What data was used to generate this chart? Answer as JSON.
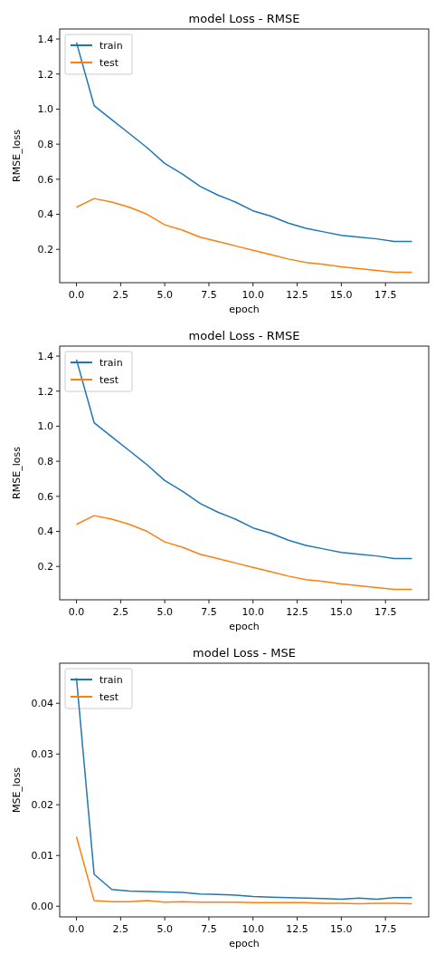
{
  "chart_data": [
    {
      "type": "line",
      "title": "model Loss - RMSE",
      "xlabel": "epoch",
      "ylabel": "RMSE_loss",
      "x": [
        0,
        1,
        2,
        3,
        4,
        5,
        6,
        7,
        8,
        9,
        10,
        11,
        12,
        13,
        14,
        15,
        16,
        17,
        18,
        19
      ],
      "xlim": [
        -0.95,
        19.95
      ],
      "xticks": [
        {
          "value": 0,
          "label": "0.0"
        },
        {
          "value": 2.5,
          "label": "2.5"
        },
        {
          "value": 5,
          "label": "5.0"
        },
        {
          "value": 7.5,
          "label": "7.5"
        },
        {
          "value": 10,
          "label": "10.0"
        },
        {
          "value": 12.5,
          "label": "12.5"
        },
        {
          "value": 15,
          "label": "15.0"
        },
        {
          "value": 17.5,
          "label": "17.5"
        }
      ],
      "ylim": [
        0.01,
        1.457
      ],
      "yticks": [
        {
          "value": 0.2,
          "label": "0.2"
        },
        {
          "value": 0.4,
          "label": "0.4"
        },
        {
          "value": 0.6,
          "label": "0.6"
        },
        {
          "value": 0.8,
          "label": "0.8"
        },
        {
          "value": 1.0,
          "label": "1.0"
        },
        {
          "value": 1.2,
          "label": "1.2"
        },
        {
          "value": 1.4,
          "label": "1.4"
        }
      ],
      "legend": "top left",
      "series": [
        {
          "name": "train",
          "color": "#1f77b4",
          "values": [
            1.38,
            1.02,
            0.94,
            0.86,
            0.78,
            0.69,
            0.63,
            0.56,
            0.51,
            0.47,
            0.42,
            0.39,
            0.35,
            0.32,
            0.3,
            0.28,
            0.27,
            0.26,
            0.245,
            0.245
          ]
        },
        {
          "name": "test",
          "color": "#ff7f0e",
          "values": [
            0.44,
            0.49,
            0.47,
            0.44,
            0.4,
            0.34,
            0.31,
            0.27,
            0.245,
            0.22,
            0.195,
            0.17,
            0.145,
            0.125,
            0.115,
            0.1,
            0.09,
            0.08,
            0.07,
            0.07
          ]
        }
      ]
    },
    {
      "type": "line",
      "title": "model Loss - RMSE",
      "xlabel": "epoch",
      "ylabel": "RMSE_loss",
      "x": [
        0,
        1,
        2,
        3,
        4,
        5,
        6,
        7,
        8,
        9,
        10,
        11,
        12,
        13,
        14,
        15,
        16,
        17,
        18,
        19
      ],
      "xlim": [
        -0.95,
        19.95
      ],
      "xticks": [
        {
          "value": 0,
          "label": "0.0"
        },
        {
          "value": 2.5,
          "label": "2.5"
        },
        {
          "value": 5,
          "label": "5.0"
        },
        {
          "value": 7.5,
          "label": "7.5"
        },
        {
          "value": 10,
          "label": "10.0"
        },
        {
          "value": 12.5,
          "label": "12.5"
        },
        {
          "value": 15,
          "label": "15.0"
        },
        {
          "value": 17.5,
          "label": "17.5"
        }
      ],
      "ylim": [
        0.01,
        1.457
      ],
      "yticks": [
        {
          "value": 0.2,
          "label": "0.2"
        },
        {
          "value": 0.4,
          "label": "0.4"
        },
        {
          "value": 0.6,
          "label": "0.6"
        },
        {
          "value": 0.8,
          "label": "0.8"
        },
        {
          "value": 1.0,
          "label": "1.0"
        },
        {
          "value": 1.2,
          "label": "1.2"
        },
        {
          "value": 1.4,
          "label": "1.4"
        }
      ],
      "legend": "top left",
      "series": [
        {
          "name": "train",
          "color": "#1f77b4",
          "values": [
            1.38,
            1.02,
            0.94,
            0.86,
            0.78,
            0.69,
            0.63,
            0.56,
            0.51,
            0.47,
            0.42,
            0.39,
            0.35,
            0.32,
            0.3,
            0.28,
            0.27,
            0.26,
            0.245,
            0.245
          ]
        },
        {
          "name": "test",
          "color": "#ff7f0e",
          "values": [
            0.44,
            0.49,
            0.47,
            0.44,
            0.4,
            0.34,
            0.31,
            0.27,
            0.245,
            0.22,
            0.195,
            0.17,
            0.145,
            0.125,
            0.115,
            0.1,
            0.09,
            0.08,
            0.07,
            0.07
          ]
        }
      ]
    },
    {
      "type": "line",
      "title": "model Loss - MSE",
      "xlabel": "epoch",
      "ylabel": "MSE_loss",
      "x": [
        0,
        1,
        2,
        3,
        4,
        5,
        6,
        7,
        8,
        9,
        10,
        11,
        12,
        13,
        14,
        15,
        16,
        17,
        18,
        19
      ],
      "xlim": [
        -0.95,
        19.95
      ],
      "xticks": [
        {
          "value": 0,
          "label": "0.0"
        },
        {
          "value": 2.5,
          "label": "2.5"
        },
        {
          "value": 5,
          "label": "5.0"
        },
        {
          "value": 7.5,
          "label": "7.5"
        },
        {
          "value": 10,
          "label": "10.0"
        },
        {
          "value": 12.5,
          "label": "12.5"
        },
        {
          "value": 15,
          "label": "15.0"
        },
        {
          "value": 17.5,
          "label": "17.5"
        }
      ],
      "ylim": [
        -0.0021,
        0.0479
      ],
      "yticks": [
        {
          "value": 0,
          "label": "0.00"
        },
        {
          "value": 0.01,
          "label": "0.01"
        },
        {
          "value": 0.02,
          "label": "0.02"
        },
        {
          "value": 0.03,
          "label": "0.03"
        },
        {
          "value": 0.04,
          "label": "0.04"
        }
      ],
      "legend": "top left",
      "series": [
        {
          "name": "train",
          "color": "#1f77b4",
          "values": [
            0.045,
            0.0063,
            0.0033,
            0.003,
            0.0029,
            0.0028,
            0.0027,
            0.0024,
            0.0023,
            0.0022,
            0.0019,
            0.0018,
            0.0017,
            0.0016,
            0.0015,
            0.0014,
            0.0016,
            0.0014,
            0.0017,
            0.0017
          ]
        },
        {
          "name": "test",
          "color": "#ff7f0e",
          "values": [
            0.0137,
            0.0011,
            0.0009,
            0.0009,
            0.0011,
            0.0008,
            0.0009,
            0.0008,
            0.0008,
            0.0008,
            0.0007,
            0.0007,
            0.0007,
            0.0007,
            0.0006,
            0.0006,
            0.0005,
            0.0006,
            0.0006,
            0.0005
          ]
        }
      ]
    }
  ]
}
